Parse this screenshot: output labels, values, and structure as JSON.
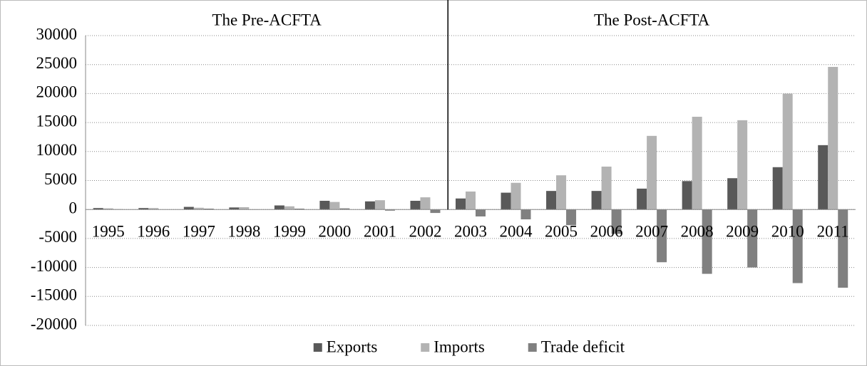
{
  "chart_data": {
    "type": "bar",
    "annotations": [
      "The Pre-ACFTA",
      "The Post-ACFTA"
    ],
    "categories": [
      "1995",
      "1996",
      "1997",
      "1998",
      "1999",
      "2000",
      "2001",
      "2002",
      "2003",
      "2004",
      "2005",
      "2006",
      "2007",
      "2008",
      "2009",
      "2010",
      "2011"
    ],
    "series": [
      {
        "name": "Exports",
        "color": "#595959",
        "values": [
          250,
          250,
          450,
          350,
          700,
          1500,
          1400,
          1500,
          1900,
          2900,
          3200,
          3200,
          3600,
          4900,
          5400,
          7300,
          11100
        ]
      },
      {
        "name": "Imports",
        "color": "#b3b3b3",
        "values": [
          200,
          250,
          300,
          400,
          550,
          1300,
          1600,
          2100,
          3100,
          4600,
          5900,
          7400,
          12700,
          16000,
          15400,
          20000,
          24600
        ]
      },
      {
        "name": "Trade deficit",
        "color": "#808080",
        "values": [
          50,
          0,
          150,
          -50,
          150,
          200,
          -200,
          -600,
          -1200,
          -1700,
          -2700,
          -4200,
          -9100,
          -11100,
          -10000,
          -12700,
          -13500
        ]
      }
    ],
    "ylim": [
      -20000,
      30000
    ],
    "yticks": [
      -20000,
      -15000,
      -10000,
      -5000,
      0,
      5000,
      10000,
      15000,
      20000,
      25000,
      30000
    ],
    "grid": true,
    "legend": "bottom"
  }
}
